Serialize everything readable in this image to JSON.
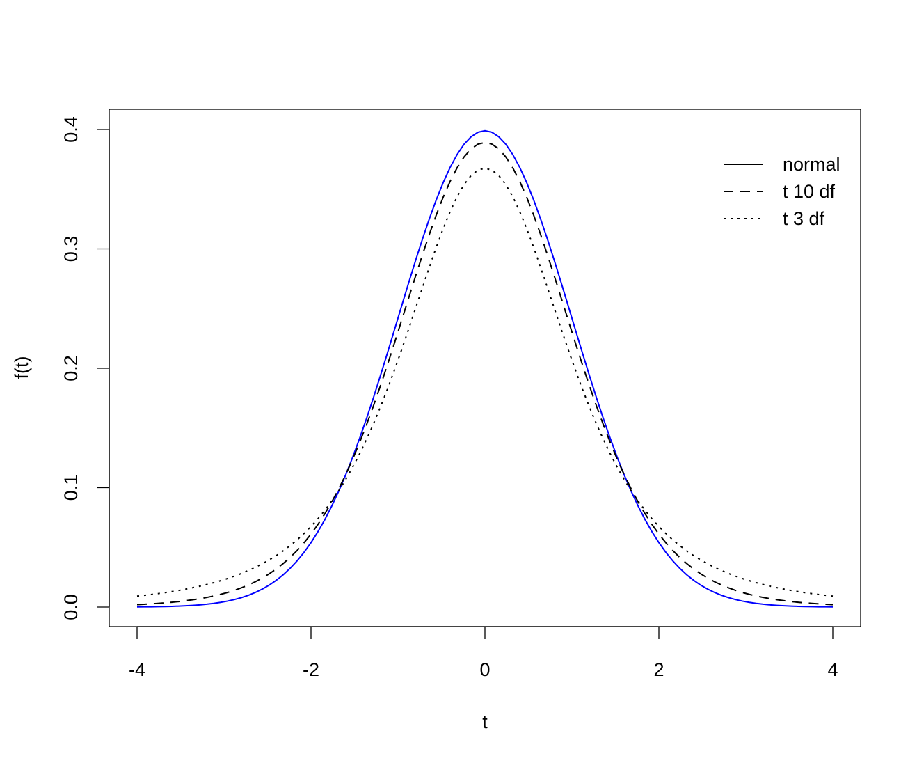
{
  "chart_data": {
    "type": "line",
    "xlabel": "t",
    "ylabel": "f(t)",
    "xlim": [
      -4,
      4
    ],
    "ylim": [
      0,
      0.4
    ],
    "x_ticks": [
      "-4",
      "-2",
      "0",
      "2",
      "4"
    ],
    "y_ticks": [
      "0.0",
      "0.1",
      "0.2",
      "0.3",
      "0.4"
    ],
    "grid": false,
    "legend_position": "top-right",
    "series": [
      {
        "name": "normal",
        "distribution": "normal",
        "color": "#0000ff",
        "legend_color": "#000000",
        "linestyle": "solid",
        "x": [
          -4,
          -3.5,
          -3,
          -2.5,
          -2,
          -1.5,
          -1,
          -0.5,
          0,
          0.5,
          1,
          1.5,
          2,
          2.5,
          3,
          3.5,
          4
        ],
        "y": [
          0.0001,
          0.0009,
          0.0044,
          0.0175,
          0.054,
          0.1295,
          0.242,
          0.3521,
          0.3989,
          0.3521,
          0.242,
          0.1295,
          0.054,
          0.0175,
          0.0044,
          0.0009,
          0.0001
        ]
      },
      {
        "name": "t 10 df",
        "distribution": "t",
        "df": 10,
        "color": "#000000",
        "legend_color": "#000000",
        "linestyle": "dashed",
        "x": [
          -4,
          -3.5,
          -3,
          -2.5,
          -2,
          -1.5,
          -1,
          -0.5,
          0,
          0.5,
          1,
          1.5,
          2,
          2.5,
          3,
          3.5,
          4
        ],
        "y": [
          0.0028,
          0.0061,
          0.0114,
          0.0269,
          0.0611,
          0.1274,
          0.2304,
          0.3397,
          0.3891,
          0.3397,
          0.2304,
          0.1274,
          0.0611,
          0.0269,
          0.0114,
          0.0061,
          0.0028
        ]
      },
      {
        "name": "t 3 df",
        "distribution": "t",
        "df": 3,
        "color": "#000000",
        "legend_color": "#000000",
        "linestyle": "dotted",
        "x": [
          -4,
          -3.5,
          -3,
          -2.5,
          -2,
          -1.5,
          -1,
          -0.5,
          0,
          0.5,
          1,
          1.5,
          2,
          2.5,
          3,
          3.5,
          4
        ],
        "y": [
          0.0092,
          0.0134,
          0.0229,
          0.0354,
          0.0675,
          0.1274,
          0.2067,
          0.3118,
          0.3676,
          0.3118,
          0.2067,
          0.1274,
          0.0675,
          0.0354,
          0.0229,
          0.0134,
          0.0092
        ]
      }
    ]
  }
}
